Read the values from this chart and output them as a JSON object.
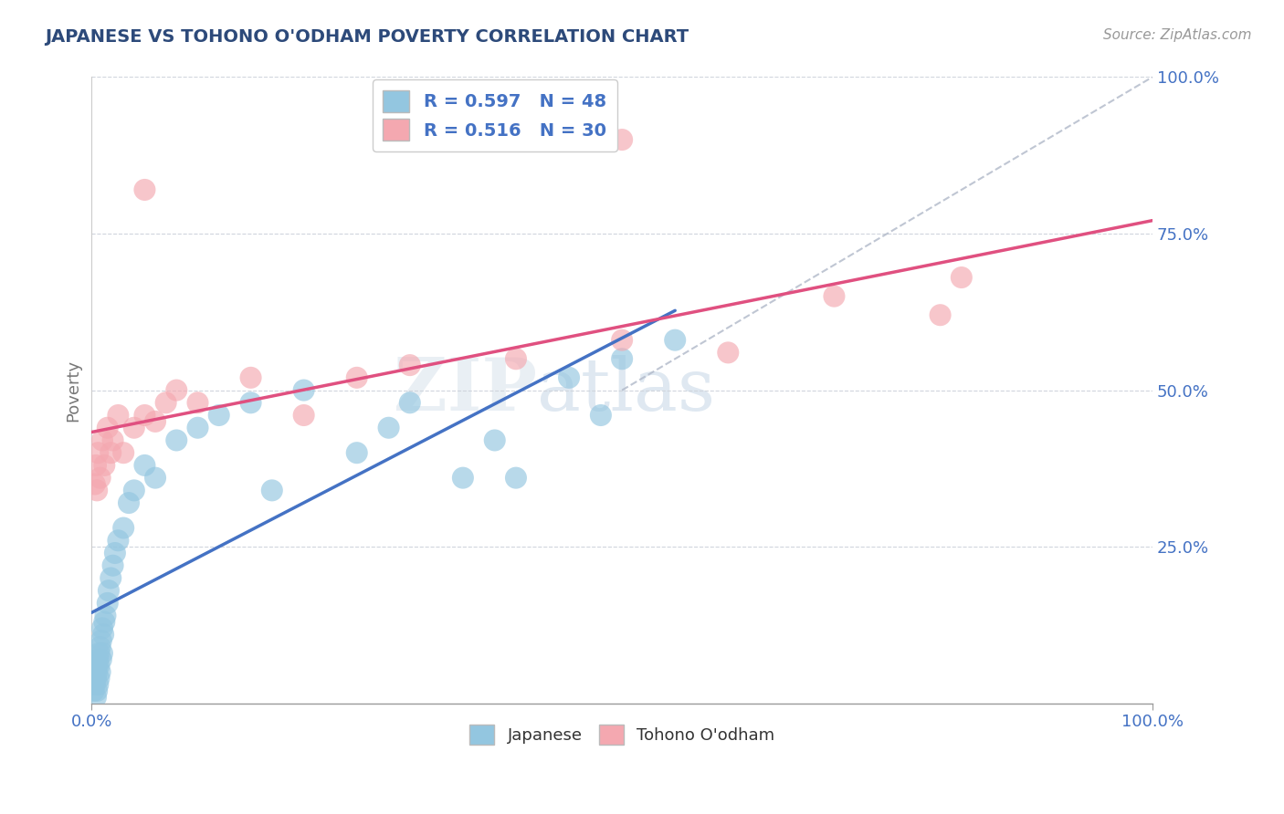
{
  "title": "JAPANESE VS TOHONO O'ODHAM POVERTY CORRELATION CHART",
  "title_color": "#2d4a7a",
  "source_text": "Source: ZipAtlas.com",
  "ylabel": "Poverty",
  "ylabel_color": "#777777",
  "xlim": [
    0.0,
    1.0
  ],
  "ylim": [
    0.0,
    1.0
  ],
  "ytick_positions": [
    0.25,
    0.5,
    0.75,
    1.0
  ],
  "watermark_top": "ZIP",
  "watermark_bot": "atlas",
  "color_japanese": "#93c6e0",
  "color_tohono": "#f4a8b0",
  "color_japanese_line": "#4472c4",
  "color_tohono_line": "#e05080",
  "color_diagonal": "#b0b8c8",
  "background_color": "#ffffff",
  "grid_color": "#d0d5dd",
  "japanese_x": [
    0.002,
    0.003,
    0.004,
    0.004,
    0.005,
    0.005,
    0.005,
    0.006,
    0.006,
    0.007,
    0.007,
    0.007,
    0.008,
    0.008,
    0.009,
    0.009,
    0.01,
    0.01,
    0.011,
    0.012,
    0.013,
    0.015,
    0.016,
    0.018,
    0.02,
    0.022,
    0.025,
    0.03,
    0.035,
    0.04,
    0.05,
    0.06,
    0.08,
    0.1,
    0.12,
    0.15,
    0.17,
    0.2,
    0.25,
    0.28,
    0.3,
    0.35,
    0.38,
    0.4,
    0.45,
    0.48,
    0.5,
    0.55
  ],
  "japanese_y": [
    0.02,
    0.03,
    0.01,
    0.04,
    0.02,
    0.05,
    0.06,
    0.03,
    0.07,
    0.04,
    0.08,
    0.06,
    0.05,
    0.09,
    0.07,
    0.1,
    0.08,
    0.12,
    0.11,
    0.13,
    0.14,
    0.16,
    0.18,
    0.2,
    0.22,
    0.24,
    0.26,
    0.28,
    0.32,
    0.34,
    0.38,
    0.36,
    0.42,
    0.44,
    0.46,
    0.48,
    0.34,
    0.5,
    0.4,
    0.44,
    0.48,
    0.36,
    0.42,
    0.36,
    0.52,
    0.46,
    0.55,
    0.58
  ],
  "tohono_x": [
    0.003,
    0.004,
    0.005,
    0.006,
    0.008,
    0.01,
    0.012,
    0.015,
    0.018,
    0.02,
    0.025,
    0.03,
    0.04,
    0.05,
    0.06,
    0.07,
    0.08,
    0.1,
    0.15,
    0.2,
    0.25,
    0.3,
    0.4,
    0.5,
    0.6,
    0.7,
    0.8,
    0.82,
    0.05,
    0.5
  ],
  "tohono_y": [
    0.35,
    0.38,
    0.34,
    0.4,
    0.36,
    0.42,
    0.38,
    0.44,
    0.4,
    0.42,
    0.46,
    0.4,
    0.44,
    0.46,
    0.45,
    0.48,
    0.5,
    0.48,
    0.52,
    0.46,
    0.52,
    0.54,
    0.55,
    0.58,
    0.56,
    0.65,
    0.62,
    0.68,
    0.82,
    0.9
  ],
  "legend_label1": "R = 0.597   N = 48",
  "legend_label2": "R = 0.516   N = 30",
  "bottom_label1": "Japanese",
  "bottom_label2": "Tohono O'odham"
}
